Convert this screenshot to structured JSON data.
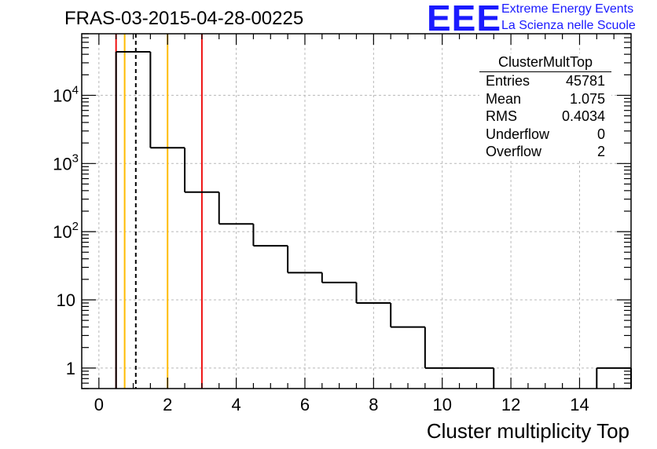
{
  "header": {
    "title": "FRAS-03-2015-04-28-00225",
    "logo_text": "EEE",
    "logo_line1": "Extreme Energy Events",
    "logo_line2": "La Scienza nelle Scuole"
  },
  "stats": {
    "title": "ClusterMultTop",
    "rows": [
      {
        "key": "Entries",
        "value": "45781"
      },
      {
        "key": "Mean",
        "value": "1.075"
      },
      {
        "key": "RMS",
        "value": "0.4034"
      },
      {
        "key": "Underflow",
        "value": "0"
      },
      {
        "key": "Overflow",
        "value": "2"
      }
    ]
  },
  "colors": {
    "hist": "#000000",
    "red_line": "#ee1111",
    "orange_line": "#ffbb00",
    "grid": "#b8b8b8"
  },
  "chart_data": {
    "type": "histogram",
    "title": "FRAS-03-2015-04-28-00225",
    "xlabel": "Cluster multiplicity Top",
    "ylabel": "",
    "yscale": "log",
    "xlim": [
      -0.5,
      15.5
    ],
    "ylim": [
      0.5,
      80000
    ],
    "grid": true,
    "bin_edges": [
      0.5,
      1.5,
      2.5,
      3.5,
      4.5,
      5.5,
      6.5,
      7.5,
      8.5,
      9.5,
      10.5,
      11.5,
      12.5,
      13.5,
      14.5,
      15.5
    ],
    "counts": [
      43500,
      1700,
      380,
      130,
      62,
      25,
      18,
      9,
      4,
      1,
      1,
      0,
      0,
      0,
      1
    ],
    "x_ticks": [
      0,
      2,
      4,
      6,
      8,
      10,
      12,
      14
    ],
    "x_tick_labels": [
      "0",
      "2",
      "4",
      "6",
      "8",
      "10",
      "12",
      "14"
    ],
    "y_ticks": [
      1,
      10,
      100,
      1000,
      10000
    ],
    "y_tick_labels": [
      {
        "base": "1",
        "exp": ""
      },
      {
        "base": "10",
        "exp": ""
      },
      {
        "base": "10",
        "exp": "2"
      },
      {
        "base": "10",
        "exp": "3"
      },
      {
        "base": "10",
        "exp": "4"
      }
    ],
    "vertical_lines": [
      {
        "x": 0.5,
        "color": "red",
        "style": "solid"
      },
      {
        "x": 0.75,
        "color": "orange",
        "style": "solid"
      },
      {
        "x": 1.075,
        "color": "black",
        "style": "dashed"
      },
      {
        "x": 2,
        "color": "orange",
        "style": "solid"
      },
      {
        "x": 3,
        "color": "red",
        "style": "solid"
      }
    ]
  }
}
